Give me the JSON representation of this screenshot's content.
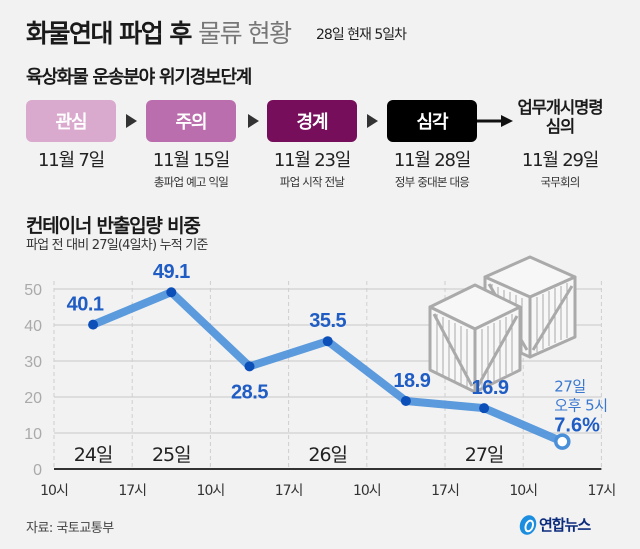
{
  "header": {
    "title_bold": "화물연대 파업 후",
    "title_light": "물류 현황",
    "date_note": "28일 현재 5일차"
  },
  "stages": {
    "title": "육상화물 운송분야 위기경보단계",
    "items": [
      {
        "label": "관심",
        "date": "11월 7일",
        "note": "",
        "color": "#d9a9ce"
      },
      {
        "label": "주의",
        "date": "11월 15일",
        "note": "총파업 예고 익일",
        "color": "#bb6eae"
      },
      {
        "label": "경계",
        "date": "11월 23일",
        "note": "파업 시작 전날",
        "color": "#760e5b"
      },
      {
        "label": "심각",
        "date": "11월 28일",
        "note": "정부 중대본 대응",
        "color": "#000000"
      }
    ],
    "final": {
      "label_line1": "업무개시명령",
      "label_line2": "심의",
      "date": "11월 29일",
      "note": "국무회의"
    }
  },
  "chart_data": {
    "type": "line",
    "title": "컨테이너 반출입량 비중",
    "subtitle": "파업 전 대비 27일(4일차) 누적 기준",
    "xlabel": "",
    "ylabel": "",
    "ylim": [
      0,
      50
    ],
    "yticks": [
      0,
      10,
      20,
      30,
      40,
      50
    ],
    "xticks": [
      "10시",
      "17시",
      "10시",
      "17시",
      "10시",
      "17시",
      "10시",
      "17시"
    ],
    "day_labels": [
      {
        "label": "24일",
        "slot": 0
      },
      {
        "label": "25일",
        "slot": 1
      },
      {
        "label": "26일",
        "slot": 3
      },
      {
        "label": "27일",
        "slot": 5
      }
    ],
    "grid": true,
    "color": "#4a90d9",
    "label_color": "#1f5cc4",
    "x": [
      0.5,
      1.5,
      2.5,
      3.5,
      4.5,
      5.5,
      6.5
    ],
    "values": [
      40.1,
      49.1,
      28.5,
      35.5,
      18.9,
      16.9,
      7.6
    ],
    "value_labels": [
      "40.1",
      "49.1",
      "28.5",
      "35.5",
      "18.9",
      "16.9",
      "7.6%"
    ],
    "last_point_annotation": {
      "line1": "27일",
      "line2": "오후 5시"
    }
  },
  "footer": {
    "source": "자료: 국토교통부",
    "logo_text": "연합뉴스"
  }
}
